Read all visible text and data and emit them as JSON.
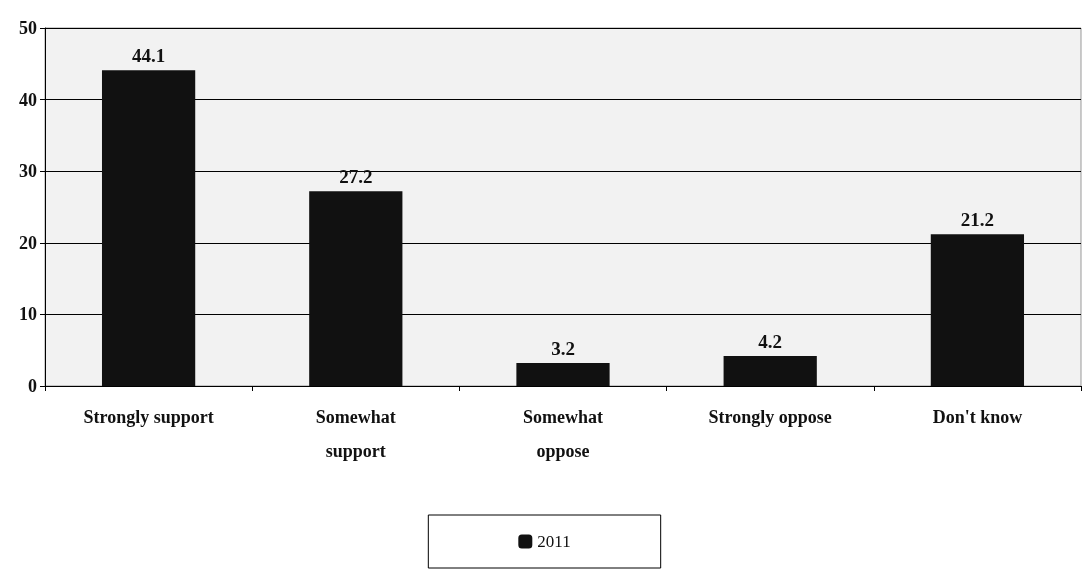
{
  "chart_data": {
    "type": "bar",
    "categories": [
      "Strongly support",
      "Somewhat\nsupport",
      "Somewhat\noppose",
      "Strongly oppose",
      "Don't know"
    ],
    "series": [
      {
        "name": "2011",
        "color": "#111111",
        "values": [
          44.1,
          27.2,
          3.2,
          4.2,
          21.2
        ]
      }
    ],
    "ylim": [
      0,
      50
    ],
    "yticks": [
      0,
      10,
      20,
      30,
      40,
      50
    ],
    "grid": "y",
    "data_labels": true,
    "legend": "bottom"
  }
}
